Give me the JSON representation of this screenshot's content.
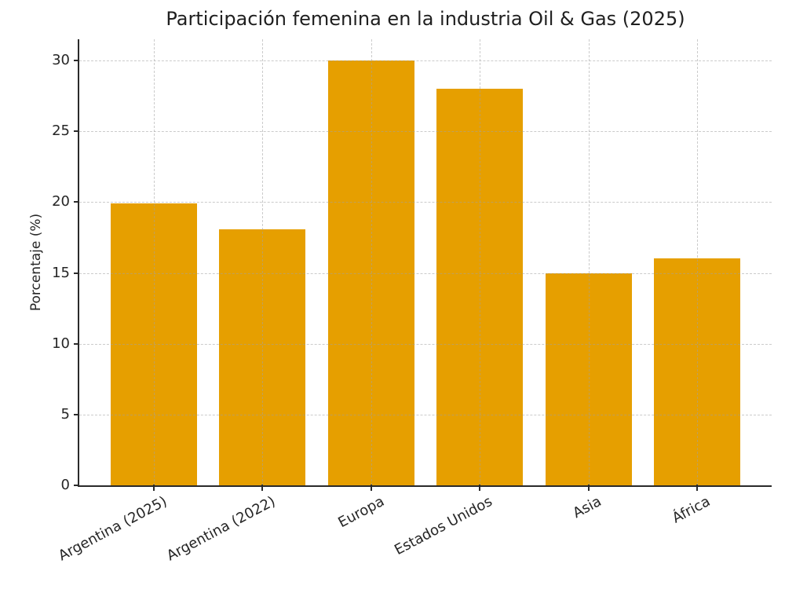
{
  "chart_data": {
    "type": "bar",
    "title": "Participación femenina en la industria Oil & Gas (2025)",
    "categories": [
      "Argentina (2025)",
      "Argentina (2022)",
      "Europa",
      "Estados Unidos",
      "Asia",
      "África"
    ],
    "values": [
      19.9,
      18.1,
      30,
      28,
      15,
      16
    ],
    "xlabel": "",
    "ylabel": "Porcentaje (%)",
    "ylim": [
      0,
      31.5
    ],
    "yticks": [
      0,
      5,
      10,
      15,
      20,
      25,
      30
    ],
    "grid": true,
    "grid_style": "dashed",
    "grid_above_bars": true,
    "legend": "none",
    "x_tick_rotation_deg": 28,
    "colors": {
      "bar": "#E69F00",
      "axis": "#2a2a2a",
      "grid": "#c9c9c9",
      "text": "#262626",
      "background": "#ffffff"
    }
  }
}
